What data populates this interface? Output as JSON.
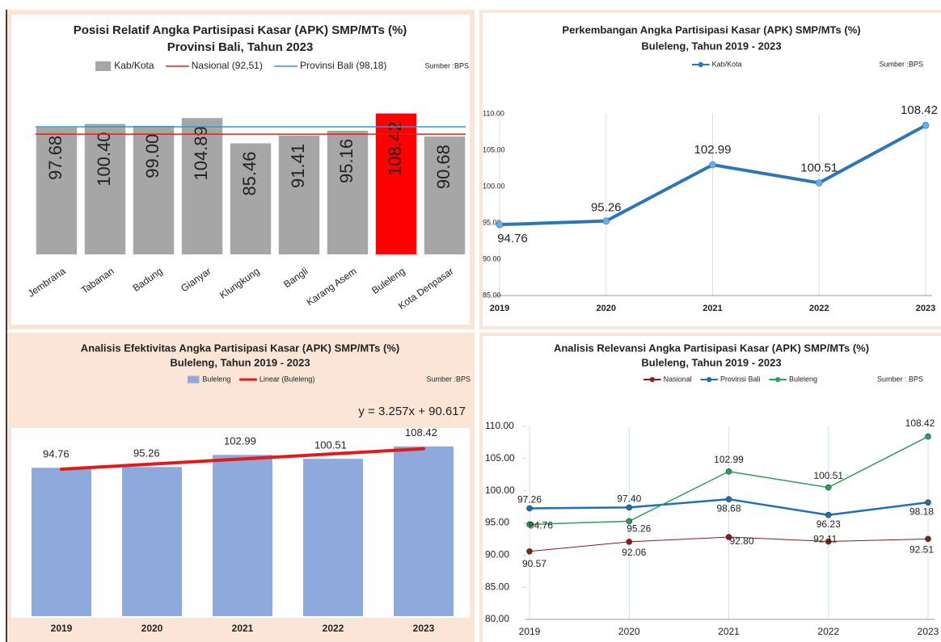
{
  "chart_data": [
    {
      "type": "bar",
      "title": "Posisi Relatif Angka Partisipasi Kasar (APK) SMP/MTs (%)",
      "subtitle": "Provinsi Bali, Tahun 2023",
      "source": "Sumber :BPS",
      "categories": [
        "Jembrana",
        "Tabanan",
        "Badung",
        "Gianyar",
        "Klungkung",
        "Bangli",
        "Karang Asem",
        "Buleleng",
        "Kota Denpasar"
      ],
      "series": [
        {
          "name": "Kab/Kota",
          "color": "#a6a6a6",
          "colors": [
            "#a6a6a6",
            "#a6a6a6",
            "#a6a6a6",
            "#a6a6a6",
            "#a6a6a6",
            "#a6a6a6",
            "#a6a6a6",
            "#ff0000",
            "#a6a6a6"
          ],
          "values": [
            97.68,
            100.4,
            99.0,
            104.89,
            85.46,
            91.41,
            95.16,
            108.42,
            90.68
          ],
          "value_labels": [
            "97.68",
            "100.40",
            "99.00",
            "104.89",
            "85.46",
            "91.41",
            "95.16",
            "108.42",
            "90.68"
          ]
        }
      ],
      "reference_lines": [
        {
          "name": "Nasional (92,51)",
          "value": 92.51,
          "color": "#e0201b"
        },
        {
          "name": "Provinsi Bali (98,18)",
          "value": 98.18,
          "color": "#2e9bd6"
        }
      ],
      "ylim": [
        0,
        110
      ]
    },
    {
      "type": "line",
      "title": "Perkembangan Angka Partisipasi Kasar (APK) SMP/MTs (%)",
      "subtitle": "Buleleng, Tahun 2019 - 2023",
      "source": "Sumber :BPS",
      "categories": [
        "2019",
        "2020",
        "2021",
        "2022",
        "2023"
      ],
      "series": [
        {
          "name": "Kab/Kota",
          "color": "#2e75b6",
          "values": [
            94.76,
            95.26,
            102.99,
            100.51,
            108.42
          ],
          "value_labels": [
            "94.76",
            "95.26",
            "102.99",
            "100.51",
            "108.42"
          ]
        }
      ],
      "ylim": [
        85,
        110
      ],
      "yticks": [
        {
          "value": 85,
          "label": "85.00"
        },
        {
          "value": 90,
          "label": "90.00"
        },
        {
          "value": 95,
          "label": "95.00"
        },
        {
          "value": 100,
          "label": "100.00"
        },
        {
          "value": 105,
          "label": "105.00"
        },
        {
          "value": 110,
          "label": "110.00"
        }
      ],
      "xgrid": true
    },
    {
      "type": "bar",
      "title": "Analisis Efektivitas Angka Partisipasi Kasar (APK) SMP/MTs (%)",
      "subtitle": "Buleleng, Tahun 2019 - 2023",
      "source": "Sumber :BPS",
      "categories": [
        "2019",
        "2020",
        "2021",
        "2022",
        "2023"
      ],
      "series": [
        {
          "name": "Buleleng",
          "color": "#8eaadc",
          "values": [
            94.76,
            95.26,
            102.99,
            100.51,
            108.42
          ],
          "value_labels": [
            "94.76",
            "95.26",
            "102.99",
            "100.51",
            "108.42"
          ]
        }
      ],
      "trendline": {
        "name": "Linear (Buleleng)",
        "label": "y = 3.257x + 90.617",
        "slope": 3.257,
        "intercept": 90.617,
        "color": "#e31a1c"
      },
      "ylim": [
        0,
        115
      ]
    },
    {
      "type": "line",
      "title": "Analisis Relevansi Angka Partisipasi Kasar (APK) SMP/MTs (%)",
      "subtitle": "Buleleng, Tahun 2019 - 2023",
      "source": "Sumber : BPS",
      "categories": [
        "2019",
        "2020",
        "2021",
        "2022",
        "2023"
      ],
      "series": [
        {
          "name": "Nasional",
          "color": "#8b1a1a",
          "values": [
            90.57,
            92.06,
            92.8,
            92.11,
            92.51
          ],
          "value_labels": [
            "90.57",
            "92.06",
            "92.80",
            "92.11",
            "92.51"
          ]
        },
        {
          "name": "Provinsi Bali",
          "color": "#1f6fb4",
          "values": [
            97.26,
            97.4,
            98.68,
            96.23,
            98.18
          ],
          "value_labels": [
            "97.26",
            "97.40",
            "98.68",
            "96.23",
            "98.18"
          ]
        },
        {
          "name": "Buleleng",
          "color": "#2aa05a",
          "values": [
            94.76,
            95.26,
            102.99,
            100.51,
            108.42
          ],
          "value_labels": [
            "94.76",
            "95.26",
            "102.99",
            "100.51",
            "108.42"
          ]
        }
      ],
      "ylim": [
        80,
        110
      ],
      "yticks": [
        {
          "value": 80,
          "label": "80.00"
        },
        {
          "value": 85,
          "label": "85.00"
        },
        {
          "value": 90,
          "label": "90.00"
        },
        {
          "value": 95,
          "label": "95.00"
        },
        {
          "value": 100,
          "label": "100.00"
        },
        {
          "value": 105,
          "label": "105.00"
        },
        {
          "value": 110,
          "label": "110.00"
        }
      ],
      "xgrid": true
    }
  ]
}
